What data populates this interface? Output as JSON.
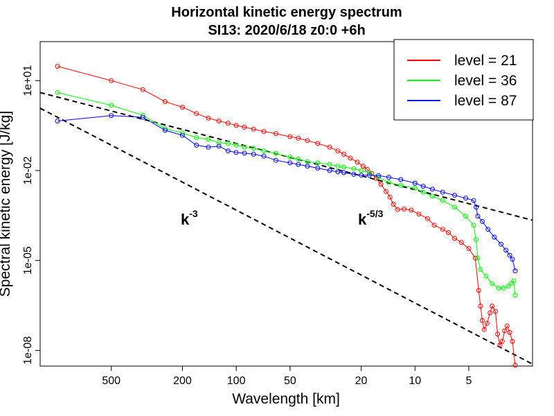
{
  "chart_data": {
    "type": "line",
    "title": "Horizontal kinetic energy spectrum",
    "subtitle": "SI13: 2020/6/18 z0:0 +6h",
    "xlabel": "Wavelength [km]",
    "ylabel": "Spectral kinetic energy [J/kg]",
    "x_scale": "log",
    "y_scale": "log",
    "x_reversed": true,
    "xlim": [
      1250,
      2.2
    ],
    "ylim": [
      3e-09,
      200.0
    ],
    "x_ticks": [
      {
        "value": 500,
        "label": "500"
      },
      {
        "value": 200,
        "label": "200"
      },
      {
        "value": 100,
        "label": "100"
      },
      {
        "value": 50,
        "label": "50"
      },
      {
        "value": 20,
        "label": "20"
      },
      {
        "value": 10,
        "label": "10"
      },
      {
        "value": 5,
        "label": "5"
      }
    ],
    "y_ticks": [
      {
        "value": 10.0,
        "label": "1e+01"
      },
      {
        "value": 0.01,
        "label": "1e-02"
      },
      {
        "value": 1e-05,
        "label": "1e-05"
      },
      {
        "value": 1e-08,
        "label": "1e-08"
      }
    ],
    "legend_position": "top-right",
    "series": [
      {
        "name": "level = 21",
        "color": "#ff0000",
        "points": [
          [
            1000,
            30.0
          ],
          [
            500,
            10.0
          ],
          [
            333,
            5.0
          ],
          [
            250,
            2.0
          ],
          [
            200,
            1.3
          ],
          [
            167,
            0.8
          ],
          [
            143,
            0.56
          ],
          [
            125,
            0.45
          ],
          [
            111,
            0.38
          ],
          [
            100,
            0.32
          ],
          [
            90,
            0.28
          ],
          [
            80,
            0.24
          ],
          [
            70,
            0.2
          ],
          [
            60,
            0.17
          ],
          [
            50,
            0.135
          ],
          [
            45,
            0.12
          ],
          [
            40,
            0.1
          ],
          [
            35,
            0.08
          ],
          [
            30,
            0.06
          ],
          [
            27,
            0.045
          ],
          [
            25,
            0.035
          ],
          [
            23,
            0.026
          ],
          [
            21,
            0.019
          ],
          [
            19.5,
            0.014
          ],
          [
            18.5,
            0.011
          ],
          [
            17.5,
            0.008
          ],
          [
            16.5,
            0.0055
          ],
          [
            15.5,
            0.0035
          ],
          [
            14.5,
            0.002
          ],
          [
            13.8,
            0.0013
          ],
          [
            13.2,
            0.00075
          ],
          [
            12.5,
            0.0005
          ],
          [
            11.5,
            0.00052
          ],
          [
            10.5,
            0.00048
          ],
          [
            9.5,
            0.00035
          ],
          [
            8.5,
            0.00025
          ],
          [
            7.8,
            0.00015
          ],
          [
            7.0,
            0.00011
          ],
          [
            6.5,
            8.5e-05
          ],
          [
            6.0,
            5.5e-05
          ],
          [
            5.5,
            4e-05
          ],
          [
            5.0,
            2.5e-05
          ],
          [
            4.6,
            1.2e-05
          ],
          [
            4.4,
            1e-06
          ],
          [
            4.3,
            3e-07
          ],
          [
            4.2,
            1e-07
          ],
          [
            4.1,
            5e-08
          ],
          [
            3.95,
            8e-08
          ],
          [
            3.8,
            1.8e-07
          ],
          [
            3.7,
            3e-07
          ],
          [
            3.55,
            2e-07
          ],
          [
            3.45,
            3.5e-08
          ],
          [
            3.35,
            1.5e-08
          ],
          [
            3.25,
            2e-08
          ],
          [
            3.15,
            4.5e-08
          ],
          [
            3.05,
            6.5e-08
          ],
          [
            2.95,
            4e-08
          ],
          [
            2.85,
            2e-08
          ],
          [
            2.75,
            3.2e-09
          ]
        ]
      },
      {
        "name": "level = 36",
        "color": "#00ff00",
        "points": [
          [
            1000,
            4.0
          ],
          [
            500,
            1.5
          ],
          [
            333,
            0.7
          ],
          [
            250,
            0.25
          ],
          [
            200,
            0.18
          ],
          [
            167,
            0.125
          ],
          [
            143,
            0.11
          ],
          [
            125,
            0.085
          ],
          [
            111,
            0.08
          ],
          [
            100,
            0.07
          ],
          [
            90,
            0.06
          ],
          [
            80,
            0.055
          ],
          [
            70,
            0.045
          ],
          [
            60,
            0.037
          ],
          [
            50,
            0.028
          ],
          [
            45,
            0.024
          ],
          [
            40,
            0.02
          ],
          [
            35,
            0.018
          ],
          [
            30,
            0.016
          ],
          [
            27,
            0.014
          ],
          [
            25,
            0.013
          ],
          [
            22,
            0.0115
          ],
          [
            20,
            0.01
          ],
          [
            18,
            0.0085
          ],
          [
            16,
            0.006
          ],
          [
            14,
            0.004
          ],
          [
            12,
            0.0032
          ],
          [
            10,
            0.0026
          ],
          [
            9,
            0.0019
          ],
          [
            8,
            0.0014
          ],
          [
            7,
            0.001
          ],
          [
            6,
            0.0006
          ],
          [
            5.2,
            0.0003
          ],
          [
            4.7,
            0.00015
          ],
          [
            4.55,
            5e-05
          ],
          [
            4.45,
            1.2e-05
          ],
          [
            4.3,
            5e-06
          ],
          [
            4.0,
            3e-06
          ],
          [
            3.7,
            1.7e-06
          ],
          [
            3.4,
            1.2e-06
          ],
          [
            3.2,
            1.2e-06
          ],
          [
            3.0,
            1.4e-06
          ],
          [
            2.9,
            1.7e-06
          ],
          [
            2.8,
            2.1e-06
          ],
          [
            2.75,
            7e-07
          ]
        ]
      },
      {
        "name": "level = 87",
        "color": "#0000ff",
        "points": [
          [
            1000,
            0.45
          ],
          [
            500,
            0.68
          ],
          [
            333,
            0.6
          ],
          [
            250,
            0.22
          ],
          [
            200,
            0.15
          ],
          [
            167,
            0.07
          ],
          [
            143,
            0.06
          ],
          [
            125,
            0.065
          ],
          [
            111,
            0.045
          ],
          [
            100,
            0.04
          ],
          [
            90,
            0.038
          ],
          [
            80,
            0.035
          ],
          [
            70,
            0.03
          ],
          [
            60,
            0.022
          ],
          [
            50,
            0.018
          ],
          [
            45,
            0.016
          ],
          [
            40,
            0.014
          ],
          [
            35,
            0.012
          ],
          [
            30,
            0.01
          ],
          [
            27,
            0.009
          ],
          [
            25,
            0.0085
          ],
          [
            22,
            0.0075
          ],
          [
            20,
            0.007
          ],
          [
            18,
            0.007
          ],
          [
            16,
            0.0068
          ],
          [
            14,
            0.006
          ],
          [
            12,
            0.005
          ],
          [
            10,
            0.0038
          ],
          [
            9,
            0.003
          ],
          [
            8,
            0.0024
          ],
          [
            7,
            0.0019
          ],
          [
            6,
            0.0015
          ],
          [
            5.2,
            0.0012
          ],
          [
            4.7,
            0.001
          ],
          [
            4.55,
            0.0006
          ],
          [
            4.45,
            0.0003
          ],
          [
            4.2,
            0.0002
          ],
          [
            3.9,
            0.00011
          ],
          [
            3.6,
            6e-05
          ],
          [
            3.3,
            3.5e-05
          ],
          [
            3.1,
            2.2e-05
          ],
          [
            2.95,
            1.5e-05
          ],
          [
            2.85,
            1.1e-05
          ],
          [
            2.75,
            4.5e-06
          ]
        ]
      }
    ],
    "reference_lines": [
      {
        "label": "k",
        "exponent": "-3",
        "points": [
          [
            1250,
            1.2
          ],
          [
            2.2,
            3.5e-09
          ]
        ]
      },
      {
        "label": "k",
        "exponent": "-5/3",
        "points": [
          [
            1250,
            4.0
          ],
          [
            2.2,
            0.00022
          ]
        ]
      }
    ]
  }
}
